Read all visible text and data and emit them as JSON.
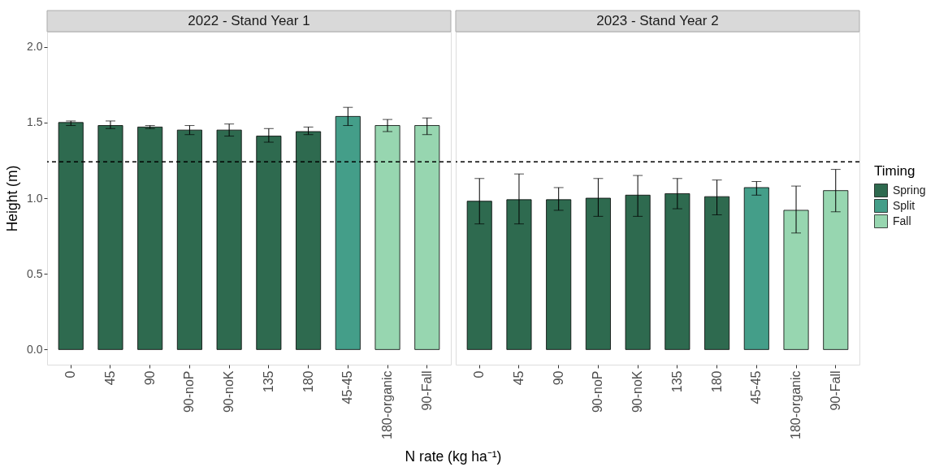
{
  "chart_data": [
    {
      "type": "bar",
      "title": "2022 - Stand Year 1",
      "xlabel": "N rate (kg ha⁻¹)",
      "ylabel": "Height (m)",
      "categories": [
        "0",
        "45",
        "90",
        "90-noP",
        "90-noK",
        "135",
        "180",
        "45-45",
        "180-organic",
        "90-Fall"
      ],
      "series": [
        {
          "name": "Spring",
          "color": "#2e6a4f",
          "values": [
            1.5,
            1.48,
            1.47,
            1.45,
            1.45,
            1.41,
            1.44,
            null,
            null,
            null
          ],
          "errors": [
            [
              1.48,
              1.51
            ],
            [
              1.46,
              1.51
            ],
            [
              1.46,
              1.48
            ],
            [
              1.42,
              1.48
            ],
            [
              1.41,
              1.49
            ],
            [
              1.37,
              1.46
            ],
            [
              1.42,
              1.47
            ],
            null,
            null,
            null
          ]
        },
        {
          "name": "Split",
          "color": "#449e89",
          "values": [
            null,
            null,
            null,
            null,
            null,
            null,
            null,
            1.54,
            null,
            null
          ],
          "errors": [
            null,
            null,
            null,
            null,
            null,
            null,
            null,
            [
              1.48,
              1.6
            ],
            null,
            null
          ]
        },
        {
          "name": "Fall",
          "color": "#97d6b0",
          "values": [
            null,
            null,
            null,
            null,
            null,
            null,
            null,
            null,
            1.48,
            1.48
          ],
          "errors": [
            null,
            null,
            null,
            null,
            null,
            null,
            null,
            null,
            [
              1.44,
              1.52
            ],
            [
              1.42,
              1.53
            ]
          ]
        }
      ],
      "ylim": [
        -0.1,
        2.1
      ],
      "yticks": [
        {
          "value": 0,
          "label": "0.0"
        },
        {
          "value": 0.5,
          "label": "0.5"
        },
        {
          "value": 1,
          "label": "1.0"
        },
        {
          "value": 1.5,
          "label": "1.5"
        },
        {
          "value": 2,
          "label": "2.0"
        }
      ],
      "legend": "right",
      "legend_title": "Timing",
      "ref_lines": [
        {
          "axis": "y",
          "value": 1.24,
          "line_style": "dashed"
        }
      ]
    },
    {
      "type": "bar",
      "title": "2023 - Stand Year 2",
      "categories": [
        "0",
        "45",
        "90",
        "90-noP",
        "90-noK",
        "135",
        "180",
        "45-45",
        "180-organic",
        "90-Fall"
      ],
      "series": [
        {
          "color": "#2e6a4f",
          "values": [
            0.98,
            0.99,
            0.99,
            1.0,
            1.02,
            1.03,
            1.01,
            null,
            null,
            null
          ],
          "errors": [
            [
              0.83,
              1.13
            ],
            [
              0.83,
              1.16
            ],
            [
              0.92,
              1.07
            ],
            [
              0.88,
              1.13
            ],
            [
              0.88,
              1.15
            ],
            [
              0.93,
              1.13
            ],
            [
              0.89,
              1.12
            ],
            null,
            null,
            null
          ]
        },
        {
          "color": "#449e89",
          "values": [
            null,
            null,
            null,
            null,
            null,
            null,
            null,
            1.07,
            null,
            null
          ],
          "errors": [
            null,
            null,
            null,
            null,
            null,
            null,
            null,
            [
              1.02,
              1.11
            ],
            null,
            null
          ]
        },
        {
          "color": "#97d6b0",
          "values": [
            null,
            null,
            null,
            null,
            null,
            null,
            null,
            null,
            0.92,
            1.05
          ],
          "errors": [
            null,
            null,
            null,
            null,
            null,
            null,
            null,
            null,
            [
              0.77,
              1.08
            ],
            [
              0.91,
              1.19
            ]
          ]
        }
      ],
      "ylim": [
        -0.1,
        2.1
      ],
      "tick_labels": "x",
      "ref_lines": [
        {
          "axis": "y",
          "value": 1.24,
          "line_style": "dashed"
        }
      ]
    }
  ]
}
